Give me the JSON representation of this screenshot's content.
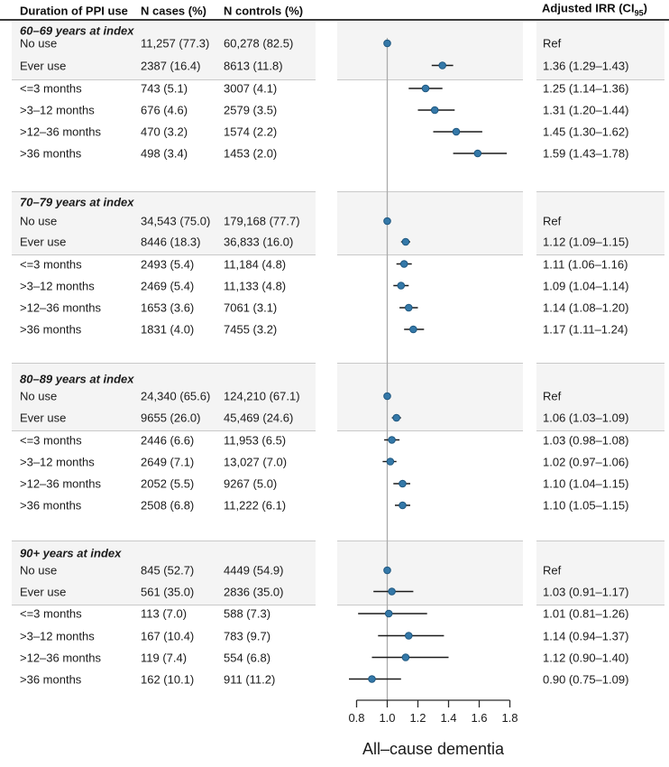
{
  "header": {
    "col_duration": "Duration of PPI use",
    "col_cases": "N cases (%)",
    "col_controls": "N controls (%)",
    "col_irr_prefix": "Adjusted IRR (CI",
    "col_irr_sub": "95",
    "col_irr_suffix": ")"
  },
  "chart_data": {
    "type": "forest",
    "xlabel": "All–cause dementia",
    "x_ticks": [
      0.8,
      1.0,
      1.2,
      1.4,
      1.6,
      1.8
    ],
    "xlim": [
      0.8,
      1.8
    ],
    "ref_line": 1.0,
    "legend": "none",
    "colors": {
      "marker_fill": "#3478a8",
      "marker_edge": "#1e567e",
      "ci_line": "#1a1a1a",
      "ref_line": "#ababab",
      "band": "#f4f4f4",
      "rule": "#c9c9c9",
      "header_rule": "#3a3a3a",
      "axis": "#2b2b2b",
      "text": "#1a1a1a"
    },
    "sections": [
      {
        "title": "60–69 years at index",
        "rows": [
          {
            "label": "No use",
            "cases": "11,257 (77.3)",
            "controls": "60,278 (82.5)",
            "irr": "Ref",
            "est": 1.0,
            "lo": null,
            "hi": null
          },
          {
            "label": "Ever use",
            "cases": "2387 (16.4)",
            "controls": "8613 (11.8)",
            "irr": "1.36 (1.29–1.43)",
            "est": 1.36,
            "lo": 1.29,
            "hi": 1.43
          },
          {
            "label": "<=3 months",
            "cases": "743 (5.1)",
            "controls": "3007 (4.1)",
            "irr": "1.25 (1.14–1.36)",
            "est": 1.25,
            "lo": 1.14,
            "hi": 1.36
          },
          {
            "label": ">3–12 months",
            "cases": "676 (4.6)",
            "controls": "2579 (3.5)",
            "irr": "1.31 (1.20–1.44)",
            "est": 1.31,
            "lo": 1.2,
            "hi": 1.44
          },
          {
            "label": ">12–36 months",
            "cases": "470 (3.2)",
            "controls": "1574 (2.2)",
            "irr": "1.45 (1.30–1.62)",
            "est": 1.45,
            "lo": 1.3,
            "hi": 1.62
          },
          {
            "label": ">36 months",
            "cases": "498 (3.4)",
            "controls": "1453 (2.0)",
            "irr": "1.59 (1.43–1.78)",
            "est": 1.59,
            "lo": 1.43,
            "hi": 1.78
          }
        ]
      },
      {
        "title": "70–79 years at index",
        "rows": [
          {
            "label": "No use",
            "cases": "34,543 (75.0)",
            "controls": "179,168 (77.7)",
            "irr": "Ref",
            "est": 1.0,
            "lo": null,
            "hi": null
          },
          {
            "label": "Ever use",
            "cases": "8446 (18.3)",
            "controls": "36,833 (16.0)",
            "irr": "1.12 (1.09–1.15)",
            "est": 1.12,
            "lo": 1.09,
            "hi": 1.15
          },
          {
            "label": "<=3 months",
            "cases": "2493 (5.4)",
            "controls": "11,184 (4.8)",
            "irr": "1.11 (1.06–1.16)",
            "est": 1.11,
            "lo": 1.06,
            "hi": 1.16
          },
          {
            "label": ">3–12 months",
            "cases": "2469 (5.4)",
            "controls": "11,133 (4.8)",
            "irr": "1.09 (1.04–1.14)",
            "est": 1.09,
            "lo": 1.04,
            "hi": 1.14
          },
          {
            "label": ">12–36 months",
            "cases": "1653 (3.6)",
            "controls": "7061 (3.1)",
            "irr": "1.14 (1.08–1.20)",
            "est": 1.14,
            "lo": 1.08,
            "hi": 1.2
          },
          {
            "label": ">36 months",
            "cases": "1831 (4.0)",
            "controls": "7455 (3.2)",
            "irr": "1.17 (1.11–1.24)",
            "est": 1.17,
            "lo": 1.11,
            "hi": 1.24
          }
        ]
      },
      {
        "title": "80–89 years at index",
        "rows": [
          {
            "label": "No use",
            "cases": "24,340 (65.6)",
            "controls": "124,210 (67.1)",
            "irr": "Ref",
            "est": 1.0,
            "lo": null,
            "hi": null
          },
          {
            "label": "Ever use",
            "cases": "9655 (26.0)",
            "controls": "45,469 (24.6)",
            "irr": "1.06 (1.03–1.09)",
            "est": 1.06,
            "lo": 1.03,
            "hi": 1.09
          },
          {
            "label": "<=3 months",
            "cases": "2446 (6.6)",
            "controls": "11,953 (6.5)",
            "irr": "1.03 (0.98–1.08)",
            "est": 1.03,
            "lo": 0.98,
            "hi": 1.08
          },
          {
            "label": ">3–12 months",
            "cases": "2649 (7.1)",
            "controls": "13,027 (7.0)",
            "irr": "1.02 (0.97–1.06)",
            "est": 1.02,
            "lo": 0.97,
            "hi": 1.06
          },
          {
            "label": ">12–36 months",
            "cases": "2052 (5.5)",
            "controls": "9267 (5.0)",
            "irr": "1.10 (1.04–1.15)",
            "est": 1.1,
            "lo": 1.04,
            "hi": 1.15
          },
          {
            "label": ">36 months",
            "cases": "2508 (6.8)",
            "controls": "11,222 (6.1)",
            "irr": "1.10 (1.05–1.15)",
            "est": 1.1,
            "lo": 1.05,
            "hi": 1.15
          }
        ]
      },
      {
        "title": "90+ years at index",
        "rows": [
          {
            "label": "No use",
            "cases": "845 (52.7)",
            "controls": "4449 (54.9)",
            "irr": "Ref",
            "est": 1.0,
            "lo": null,
            "hi": null
          },
          {
            "label": "Ever use",
            "cases": "561 (35.0)",
            "controls": "2836 (35.0)",
            "irr": "1.03 (0.91–1.17)",
            "est": 1.03,
            "lo": 0.91,
            "hi": 1.17
          },
          {
            "label": "<=3 months",
            "cases": "113 (7.0)",
            "controls": "588 (7.3)",
            "irr": "1.01 (0.81–1.26)",
            "est": 1.01,
            "lo": 0.81,
            "hi": 1.26
          },
          {
            "label": ">3–12 months",
            "cases": "167 (10.4)",
            "controls": "783 (9.7)",
            "irr": "1.14 (0.94–1.37)",
            "est": 1.14,
            "lo": 0.94,
            "hi": 1.37
          },
          {
            "label": ">12–36 months",
            "cases": "119 (7.4)",
            "controls": "554 (6.8)",
            "irr": "1.12 (0.90–1.40)",
            "est": 1.12,
            "lo": 0.9,
            "hi": 1.4
          },
          {
            "label": ">36 months",
            "cases": "162 (10.1)",
            "controls": "911 (11.2)",
            "irr": "0.90 (0.75–1.09)",
            "est": 0.9,
            "lo": 0.75,
            "hi": 1.09
          }
        ]
      }
    ]
  }
}
